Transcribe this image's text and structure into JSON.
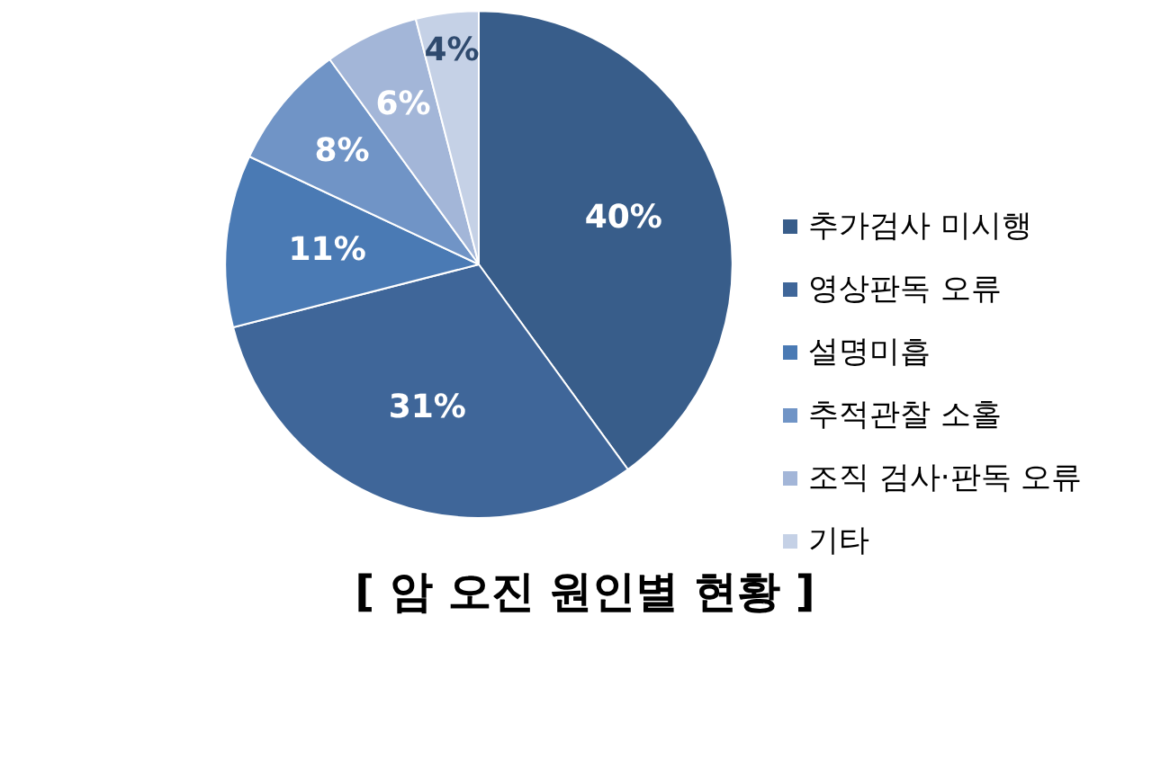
{
  "chart_data": {
    "type": "pie",
    "title": "[ 암 오진 원인별 현황 ]",
    "categories": [
      "추가검사 미시행",
      "영상판독 오류",
      "설명미흡",
      "추적관찰 소홀",
      "조직 검사·판독 오류",
      "기타"
    ],
    "values": [
      40,
      31,
      11,
      8,
      6,
      4
    ],
    "colors": [
      "#385d8a",
      "#3f6699",
      "#4a7ab4",
      "#7094c6",
      "#a3b6d8",
      "#c5d1e6"
    ],
    "value_labels": [
      "40%",
      "31%",
      "11%",
      "8%",
      "6%",
      "4%"
    ],
    "legend": "right"
  }
}
